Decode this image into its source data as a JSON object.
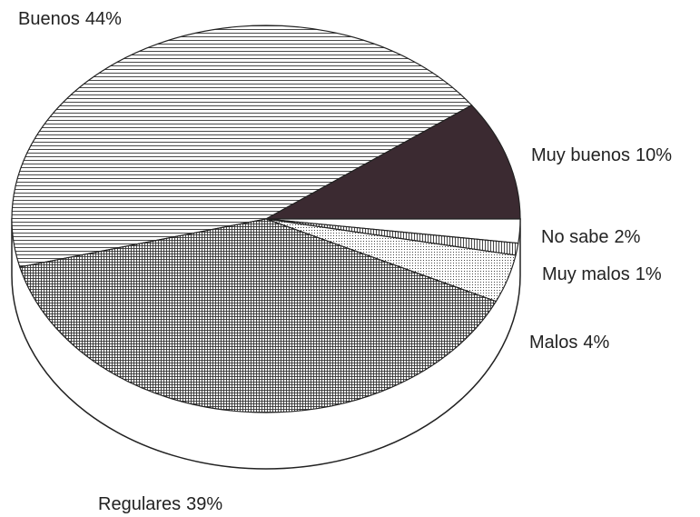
{
  "chart_data": {
    "type": "pie",
    "categories": [
      "Buenos",
      "Muy buenos",
      "No sabe",
      "Muy malos",
      "Malos",
      "Regulares"
    ],
    "values": [
      44,
      10,
      2,
      1,
      4,
      39
    ],
    "value_labels": [
      "44%",
      "10%",
      "2%",
      "1%",
      "4%",
      "39%"
    ]
  }
}
